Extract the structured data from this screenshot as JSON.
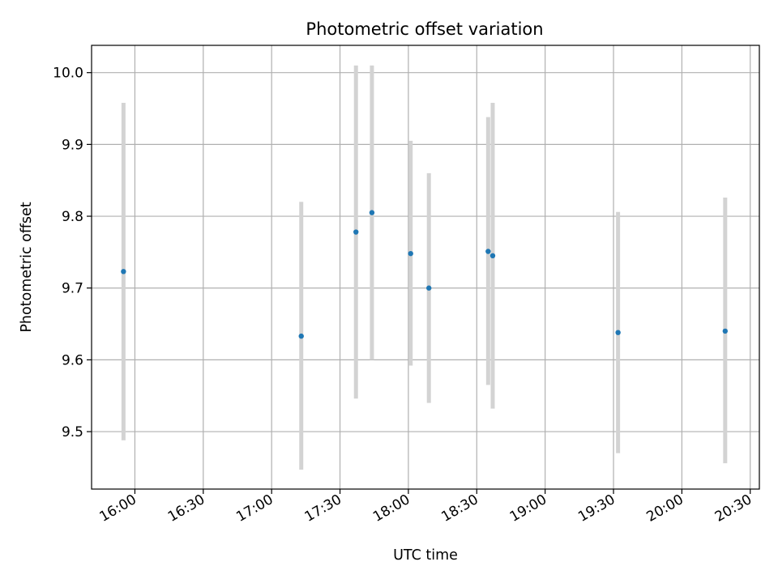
{
  "chart_data": {
    "type": "scatter",
    "title": "Photometric offset variation",
    "xlabel": "UTC time",
    "ylabel": "Photometric offset",
    "x_is_time": true,
    "xlim": [
      "15:41",
      "20:34"
    ],
    "ylim": [
      9.42,
      10.038
    ],
    "x_ticks": [
      "16:00",
      "16:30",
      "17:00",
      "17:30",
      "18:00",
      "18:30",
      "19:00",
      "19:30",
      "20:00",
      "20:30"
    ],
    "y_ticks": [
      9.5,
      9.6,
      9.7,
      9.8,
      9.9,
      10.0
    ],
    "y_tick_labels": [
      "9.5",
      "9.6",
      "9.7",
      "9.8",
      "9.9",
      "10.0"
    ],
    "grid": true,
    "colors": {
      "point": "#1f77b4",
      "errorbar": "#d3d3d3",
      "grid": "#b0b0b0"
    },
    "points": [
      {
        "x": "15:55",
        "y": 9.723,
        "ylow": 9.488,
        "yhigh": 9.958
      },
      {
        "x": "17:13",
        "y": 9.633,
        "ylow": 9.447,
        "yhigh": 9.82
      },
      {
        "x": "17:37",
        "y": 9.778,
        "ylow": 9.546,
        "yhigh": 10.01
      },
      {
        "x": "17:44",
        "y": 9.805,
        "ylow": 9.6,
        "yhigh": 10.01
      },
      {
        "x": "18:01",
        "y": 9.748,
        "ylow": 9.592,
        "yhigh": 9.905
      },
      {
        "x": "18:09",
        "y": 9.7,
        "ylow": 9.54,
        "yhigh": 9.86
      },
      {
        "x": "18:35",
        "y": 9.751,
        "ylow": 9.565,
        "yhigh": 9.938
      },
      {
        "x": "18:37",
        "y": 9.745,
        "ylow": 9.532,
        "yhigh": 9.958
      },
      {
        "x": "19:32",
        "y": 9.638,
        "ylow": 9.47,
        "yhigh": 9.806
      },
      {
        "x": "20:19",
        "y": 9.64,
        "ylow": 9.456,
        "yhigh": 9.826
      }
    ]
  }
}
